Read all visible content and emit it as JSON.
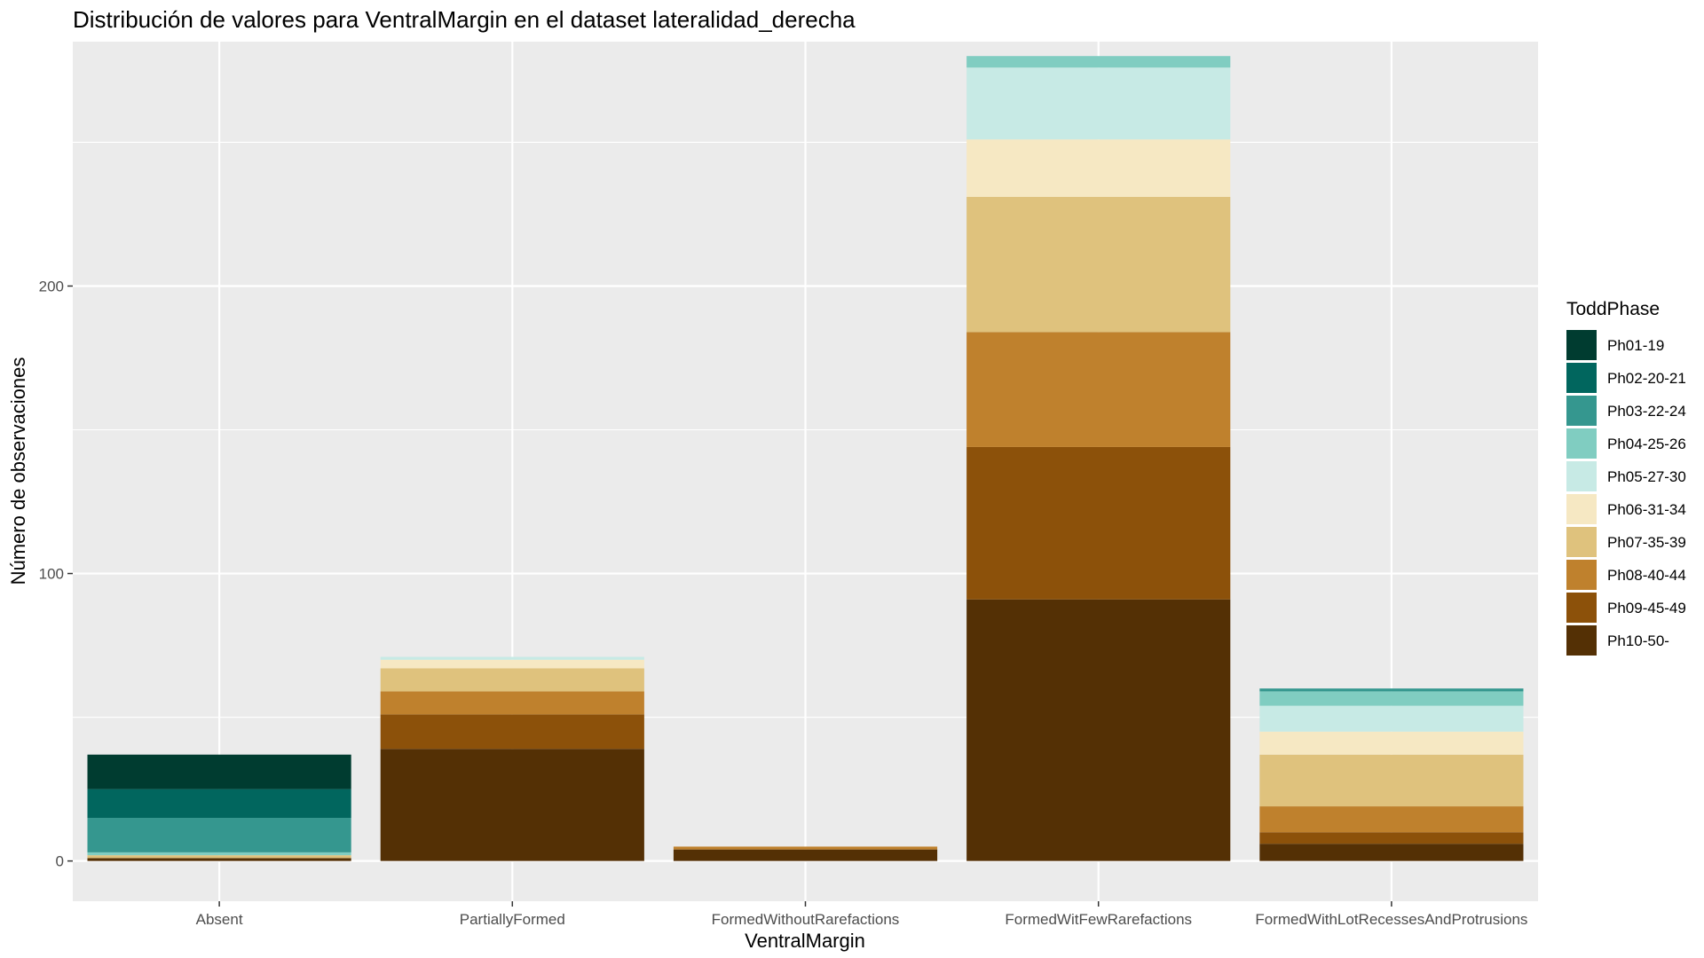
{
  "chart_data": {
    "type": "bar",
    "stacked": true,
    "title": "Distribución de valores para VentralMargin en el dataset lateralidad_derecha",
    "xlabel": "VentralMargin",
    "ylabel": "Número de observaciones",
    "ylim": [
      -14,
      285
    ],
    "yticks": [
      0,
      100,
      200
    ],
    "categories": [
      "Absent",
      "PartiallyFormed",
      "FormedWithoutRarefactions",
      "FormedWitFewRarefactions",
      "FormedWithLotRecessesAndProtrusions"
    ],
    "legend": {
      "title": "ToddPhase",
      "position": "right"
    },
    "grid": true,
    "series": [
      {
        "name": "Ph01-19",
        "color": "#003C30",
        "values": [
          12,
          0,
          0,
          0,
          0
        ]
      },
      {
        "name": "Ph02-20-21",
        "color": "#01665E",
        "values": [
          10,
          0,
          0,
          0,
          0
        ]
      },
      {
        "name": "Ph03-22-24",
        "color": "#35978F",
        "values": [
          12,
          0,
          0,
          0,
          1
        ]
      },
      {
        "name": "Ph04-25-26",
        "color": "#80CDC1",
        "values": [
          1,
          0,
          0,
          4,
          5
        ]
      },
      {
        "name": "Ph05-27-30",
        "color": "#C7EAE5",
        "values": [
          0,
          1,
          0,
          25,
          9
        ]
      },
      {
        "name": "Ph06-31-34",
        "color": "#F6E8C3",
        "values": [
          0,
          3,
          0,
          20,
          8
        ]
      },
      {
        "name": "Ph07-35-39",
        "color": "#DFC27D",
        "values": [
          1,
          8,
          0,
          47,
          18
        ]
      },
      {
        "name": "Ph08-40-44",
        "color": "#BF812D",
        "values": [
          0,
          8,
          1,
          40,
          9
        ]
      },
      {
        "name": "Ph09-45-49",
        "color": "#8C510A",
        "values": [
          0,
          12,
          0,
          53,
          4
        ]
      },
      {
        "name": "Ph10-50-",
        "color": "#543005",
        "values": [
          1,
          39,
          4,
          91,
          6
        ]
      }
    ]
  }
}
